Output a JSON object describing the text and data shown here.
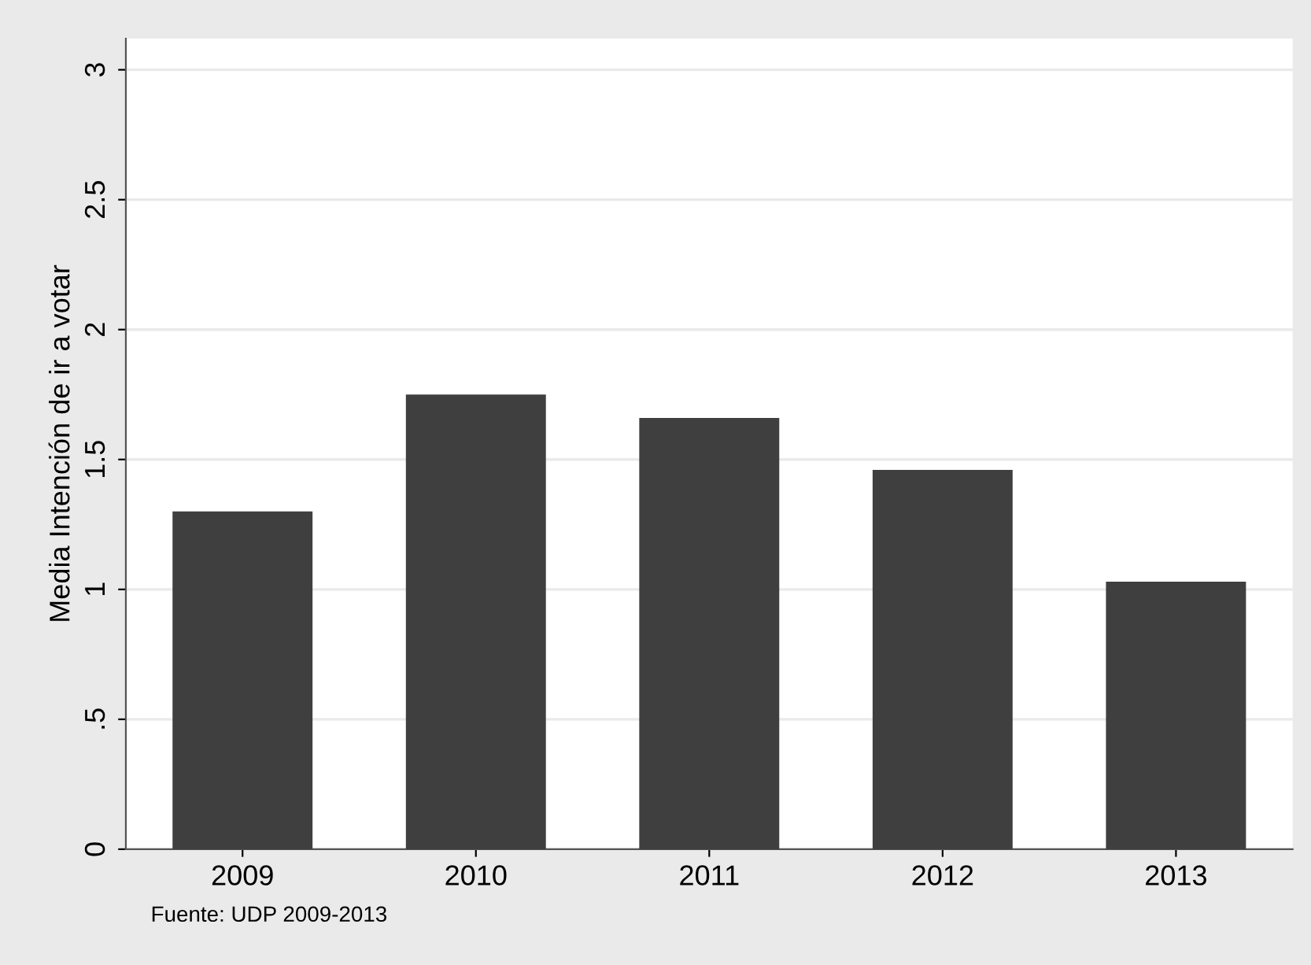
{
  "chart_data": {
    "type": "bar",
    "ylabel": "Media Intención de ir a votar",
    "categories": [
      "2009",
      "2010",
      "2011",
      "2012",
      "2013"
    ],
    "values": [
      1.3,
      1.75,
      1.66,
      1.46,
      1.03
    ],
    "color": "#3f3f3f",
    "ylim": [
      0,
      3.12
    ],
    "yticks": [
      0,
      {
        "value": 0.5,
        "label": ".5"
      },
      1,
      1.5,
      2,
      2.5,
      3
    ],
    "grid": "y",
    "annotations": [
      "Fuente: UDP 2009-2013"
    ]
  }
}
